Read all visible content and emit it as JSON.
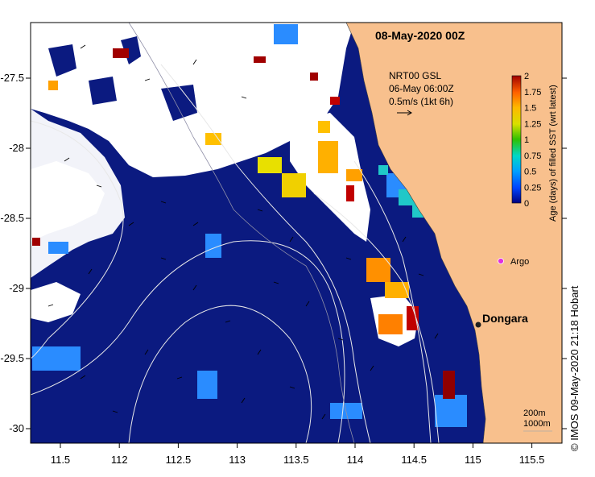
{
  "title": "08-May-2020 00Z",
  "current_note": {
    "line1": "NRT00 GSL",
    "line2": "06-May 06:00Z",
    "line3": "0.5m/s (1kt 6h)"
  },
  "colorbar": {
    "label": "Age (days) of filled SST (wrt latest)",
    "ticks": [
      "2",
      "1.75",
      "1.5",
      "1.25",
      "1",
      "0.75",
      "0.5",
      "0.25",
      "0"
    ]
  },
  "x_ticks": [
    "11.5",
    "112",
    "112.5",
    "113",
    "113.5",
    "114",
    "114.5",
    "115",
    "115.5"
  ],
  "y_ticks": [
    "-27.5",
    "-28",
    "-28.5",
    "-29",
    "-29.5",
    "-30"
  ],
  "argo_label": "Argo",
  "place_label": "Dongara",
  "scale": {
    "line1": "200m",
    "line2": "1000m"
  },
  "credit": "©  IMOS 09-May-2020 21:18 Hobart",
  "colors": {
    "ocean": "#0b1a80",
    "land": "#f8c08d",
    "cloud": "#ffffff",
    "argo": "#e030e0",
    "colorbar_stops": [
      "#000080",
      "#0055ff",
      "#00aaff",
      "#00d0c0",
      "#40c000",
      "#d0e000",
      "#ffc000",
      "#ff7000",
      "#c00000",
      "#800000"
    ]
  }
}
